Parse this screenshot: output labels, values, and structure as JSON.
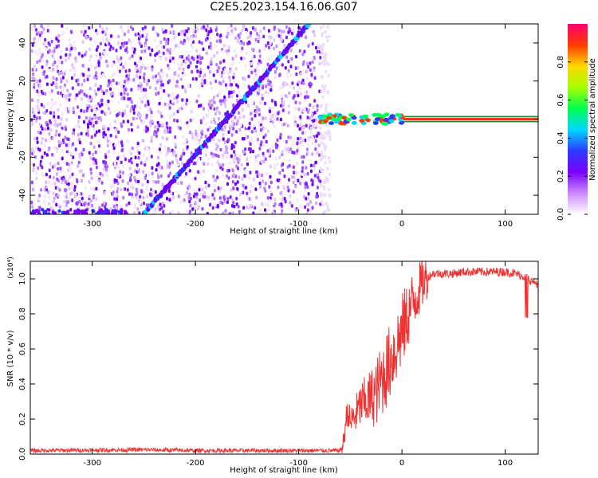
{
  "title": "C2E5.2023.154.16.06.G07",
  "chart_data": [
    {
      "type": "heatmap",
      "xlabel": "Height of straight line (km)",
      "ylabel": "Frequency (Hz)",
      "xlim": [
        -360,
        132
      ],
      "ylim": [
        -50,
        50
      ],
      "x_ticks": [
        -300,
        -200,
        -100,
        0,
        100
      ],
      "y_ticks": [
        -40,
        -20,
        0,
        20,
        40
      ],
      "colorbar": {
        "label": "Normalized spectral amplitude",
        "range": [
          0,
          1
        ],
        "ticks": [
          "0.0",
          "0.2",
          "0.4",
          "0.6",
          "0.8"
        ],
        "colors": [
          "#ffffff",
          "#cc88ff",
          "#7a00ff",
          "#2a3bff",
          "#00d8ff",
          "#00ff50",
          "#a6ff00",
          "#ffd800",
          "#ff3a00",
          "#ff006e"
        ]
      },
      "features": {
        "noise_region_x": [
          -360,
          -80
        ],
        "signal_line": {
          "x": [
            -250,
            -90
          ],
          "freq": [
            -50,
            50
          ]
        },
        "dc_band": {
          "x": [
            -80,
            132
          ],
          "freq": 0
        }
      }
    },
    {
      "type": "line",
      "xlabel": "Height of straight line (km)",
      "ylabel": "SNR (10 * v/v)",
      "y_multiplier": "(x10⁴)",
      "xlim": [
        -360,
        132
      ],
      "ylim": [
        0,
        1.1
      ],
      "x_ticks": [
        -300,
        -200,
        -100,
        0,
        100
      ],
      "y_ticks": [
        "0.0",
        "0.2",
        "0.4",
        "0.6",
        "0.8",
        "1.0"
      ],
      "series": [
        {
          "color": "#ee3333",
          "x": [
            -360,
            -250,
            -200,
            -150,
            -100,
            -70,
            -60,
            -57,
            -53,
            -50,
            -45,
            -40,
            -35,
            -30,
            -25,
            -20,
            -15,
            -10,
            -5,
            0,
            5,
            10,
            15,
            20,
            25,
            30,
            40,
            50,
            60,
            80,
            100,
            110,
            120,
            125,
            132
          ],
          "values": [
            0.02,
            0.025,
            0.02,
            0.02,
            0.02,
            0.02,
            0.02,
            0.05,
            0.25,
            0.18,
            0.22,
            0.28,
            0.3,
            0.32,
            0.35,
            0.42,
            0.48,
            0.55,
            0.62,
            0.7,
            0.78,
            0.86,
            0.92,
            0.98,
            1.01,
            1.03,
            1.03,
            1.03,
            1.04,
            1.04,
            1.04,
            1.03,
            1.01,
            0.99,
            0.97
          ]
        }
      ]
    }
  ]
}
